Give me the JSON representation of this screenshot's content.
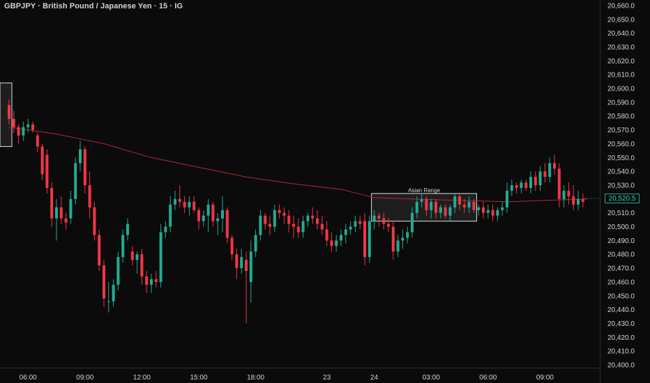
{
  "title": "GBPJPY · British Pound / Japanese Yen · 15 · IG",
  "colors": {
    "background": "#0b0b0b",
    "text": "#d1d4dc",
    "up": "#22ab94",
    "down": "#f23645",
    "moving_average": "#b22833",
    "box_border": "#e0e0e0"
  },
  "last_price_label": "20,520.5",
  "chart_data": {
    "type": "candlestick",
    "title": "GBPJPY · British Pound / Japanese Yen · 15 · IG",
    "interval": "15",
    "y_axis": {
      "ylim": [
        20398,
        20664
      ],
      "ticks": [
        20400,
        20410,
        20420,
        20430,
        20440,
        20450,
        20460,
        20470,
        20480,
        20490,
        20500,
        20510,
        20520,
        20530,
        20540,
        20550,
        20560,
        20570,
        20580,
        20590,
        20600,
        20610,
        20620,
        20630,
        20640,
        20650,
        20660
      ],
      "tick_labels": [
        "20,400.0",
        "20,410.0",
        "20,420.0",
        "20,430.0",
        "20,440.0",
        "20,450.0",
        "20,460.0",
        "20,470.0",
        "20,480.0",
        "20,490.0",
        "20,500.0",
        "20,510.0",
        "20,520.0",
        "20,530.0",
        "20,540.0",
        "20,550.0",
        "20,560.0",
        "20,570.0",
        "20,580.0",
        "20,590.0",
        "20,600.0",
        "20,610.0",
        "20,620.0",
        "20,630.0",
        "20,640.0",
        "20,650.0",
        "20,660.0"
      ],
      "side": "right"
    },
    "x_axis": {
      "tick_labels": [
        "06:00",
        "09:00",
        "12:00",
        "15:00",
        "18:00",
        "23",
        "24",
        "03:00",
        "06:00",
        "09:00"
      ],
      "tick_bar_index": [
        4,
        16,
        28,
        40,
        52,
        67,
        77,
        89,
        101,
        113
      ]
    },
    "grid": false,
    "candles": [
      [
        20588,
        20592,
        20574,
        20578
      ],
      [
        20578,
        20584,
        20568,
        20572
      ],
      [
        20572,
        20574,
        20560,
        20566
      ],
      [
        20566,
        20576,
        20562,
        20572
      ],
      [
        20572,
        20578,
        20568,
        20574
      ],
      [
        20574,
        20576,
        20568,
        20570
      ],
      [
        20566,
        20568,
        20554,
        20558
      ],
      [
        20558,
        20560,
        20534,
        20538
      ],
      [
        20552,
        20556,
        20524,
        20528
      ],
      [
        20528,
        20532,
        20500,
        20506
      ],
      [
        20506,
        20520,
        20490,
        20514
      ],
      [
        20514,
        20522,
        20502,
        20506
      ],
      [
        20506,
        20510,
        20498,
        20503
      ],
      [
        20506,
        20526,
        20502,
        20520
      ],
      [
        20520,
        20550,
        20516,
        20546
      ],
      [
        20546,
        20562,
        20540,
        20556
      ],
      [
        20556,
        20558,
        20524,
        20530
      ],
      [
        20530,
        20540,
        20506,
        20514
      ],
      [
        20514,
        20518,
        20490,
        20494
      ],
      [
        20494,
        20498,
        20468,
        20472
      ],
      [
        20472,
        20476,
        20442,
        20448
      ],
      [
        20446,
        20460,
        20438,
        20446
      ],
      [
        20446,
        20462,
        20442,
        20458
      ],
      [
        20458,
        20482,
        20454,
        20478
      ],
      [
        20478,
        20498,
        20474,
        20494
      ],
      [
        20494,
        20506,
        20490,
        20502
      ],
      [
        20482,
        20486,
        20472,
        20476
      ],
      [
        20476,
        20482,
        20466,
        20480
      ],
      [
        20480,
        20484,
        20458,
        20464
      ],
      [
        20464,
        20468,
        20452,
        20458
      ],
      [
        20458,
        20466,
        20452,
        20462
      ],
      [
        20462,
        20468,
        20456,
        20460
      ],
      [
        20460,
        20502,
        20456,
        20496
      ],
      [
        20496,
        20504,
        20492,
        20500
      ],
      [
        20500,
        20522,
        20496,
        20516
      ],
      [
        20516,
        20526,
        20512,
        20520
      ],
      [
        20520,
        20530,
        20514,
        20518
      ],
      [
        20518,
        20522,
        20510,
        20514
      ],
      [
        20514,
        20522,
        20508,
        20518
      ],
      [
        20518,
        20522,
        20510,
        20512
      ],
      [
        20512,
        20514,
        20498,
        20504
      ],
      [
        20504,
        20512,
        20500,
        20508
      ],
      [
        20508,
        20520,
        20496,
        20516
      ],
      [
        20516,
        20518,
        20500,
        20504
      ],
      [
        20504,
        20510,
        20494,
        20506
      ],
      [
        20506,
        20522,
        20496,
        20512
      ],
      [
        20512,
        20514,
        20488,
        20492
      ],
      [
        20492,
        20494,
        20476,
        20480
      ],
      [
        20480,
        20484,
        20462,
        20470
      ],
      [
        20470,
        20484,
        20466,
        20478
      ],
      [
        20476,
        20482,
        20430,
        20468
      ],
      [
        20460,
        20490,
        20445,
        20482
      ],
      [
        20482,
        20498,
        20478,
        20494
      ],
      [
        20494,
        20512,
        20490,
        20508
      ],
      [
        20508,
        20510,
        20498,
        20502
      ],
      [
        20502,
        20508,
        20494,
        20500
      ],
      [
        20500,
        20516,
        20496,
        20512
      ],
      [
        20512,
        20516,
        20506,
        20510
      ],
      [
        20510,
        20514,
        20502,
        20508
      ],
      [
        20508,
        20512,
        20496,
        20502
      ],
      [
        20502,
        20508,
        20492,
        20500
      ],
      [
        20500,
        20506,
        20492,
        20496
      ],
      [
        20496,
        20508,
        20492,
        20504
      ],
      [
        20504,
        20510,
        20500,
        20508
      ],
      [
        20508,
        20514,
        20502,
        20506
      ],
      [
        20506,
        20512,
        20498,
        20502
      ],
      [
        20502,
        20508,
        20494,
        20498
      ],
      [
        20498,
        20504,
        20486,
        20490
      ],
      [
        20490,
        20496,
        20482,
        20486
      ],
      [
        20486,
        20494,
        20482,
        20490
      ],
      [
        20490,
        20498,
        20486,
        20494
      ],
      [
        20494,
        20502,
        20488,
        20498
      ],
      [
        20498,
        20504,
        20494,
        20500
      ],
      [
        20500,
        20508,
        20496,
        20504
      ],
      [
        20504,
        20508,
        20498,
        20502
      ],
      [
        20504,
        20510,
        20472,
        20478
      ],
      [
        20478,
        20508,
        20474,
        20504
      ],
      [
        20504,
        20512,
        20498,
        20508
      ],
      [
        20508,
        20510,
        20500,
        20506
      ],
      [
        20506,
        20510,
        20498,
        20502
      ],
      [
        20502,
        20506,
        20496,
        20500
      ],
      [
        20500,
        20504,
        20476,
        20482
      ],
      [
        20482,
        20494,
        20478,
        20490
      ],
      [
        20490,
        20498,
        20484,
        20492
      ],
      [
        20492,
        20500,
        20488,
        20496
      ],
      [
        20496,
        20514,
        20492,
        20510
      ],
      [
        20510,
        20522,
        20506,
        20518
      ],
      [
        20518,
        20524,
        20514,
        20520
      ],
      [
        20520,
        20522,
        20508,
        20512
      ],
      [
        20512,
        20520,
        20506,
        20518
      ],
      [
        20518,
        20520,
        20506,
        20510
      ],
      [
        20510,
        20516,
        20506,
        20514
      ],
      [
        20514,
        20516,
        20506,
        20508
      ],
      [
        20508,
        20516,
        20504,
        20514
      ],
      [
        20514,
        20524,
        20510,
        20522
      ],
      [
        20522,
        20524,
        20512,
        20516
      ],
      [
        20516,
        20520,
        20510,
        20514
      ],
      [
        20514,
        20522,
        20510,
        20518
      ],
      [
        20518,
        20520,
        20510,
        20512
      ],
      [
        20512,
        20516,
        20508,
        20514
      ],
      [
        20514,
        20518,
        20506,
        20510
      ],
      [
        20510,
        20516,
        20506,
        20512
      ],
      [
        20512,
        20516,
        20504,
        20508
      ],
      [
        20508,
        20514,
        20504,
        20512
      ],
      [
        20512,
        20518,
        20508,
        20514
      ],
      [
        20514,
        20532,
        20510,
        20526
      ],
      [
        20526,
        20534,
        20522,
        20530
      ],
      [
        20530,
        20532,
        20524,
        20528
      ],
      [
        20528,
        20534,
        20524,
        20532
      ],
      [
        20532,
        20534,
        20526,
        20528
      ],
      [
        20528,
        20540,
        20524,
        20536
      ],
      [
        20536,
        20540,
        20526,
        20530
      ],
      [
        20530,
        20544,
        20526,
        20540
      ],
      [
        20540,
        20546,
        20532,
        20536
      ],
      [
        20536,
        20550,
        20532,
        20546
      ],
      [
        20546,
        20552,
        20538,
        20542
      ],
      [
        20542,
        20546,
        20514,
        20520
      ],
      [
        20520,
        20530,
        20514,
        20526
      ],
      [
        20526,
        20532,
        20516,
        20522
      ],
      [
        20522,
        20530,
        20512,
        20516
      ],
      [
        20516,
        20526,
        20512,
        20520
      ],
      [
        20520,
        20524,
        20514,
        20518
      ]
    ],
    "moving_average": [
      [
        0,
        20572
      ],
      [
        10,
        20567
      ],
      [
        20,
        20560
      ],
      [
        30,
        20550
      ],
      [
        40,
        20543
      ],
      [
        50,
        20536
      ],
      [
        60,
        20531
      ],
      [
        70,
        20527
      ],
      [
        77,
        20521
      ],
      [
        85,
        20520
      ],
      [
        95,
        20519
      ],
      [
        105,
        20518
      ],
      [
        113,
        20519
      ],
      [
        122,
        20520
      ]
    ],
    "annotations": [
      {
        "type": "box",
        "label": "",
        "bar_start": -2,
        "bar_end": 0,
        "y_top": 20604,
        "y_bottom": 20558
      },
      {
        "type": "box",
        "label": "Asian Range",
        "bar_start": 77,
        "bar_end": 98,
        "y_top": 20524,
        "y_bottom": 20504
      }
    ],
    "last_price": 20520.5
  }
}
